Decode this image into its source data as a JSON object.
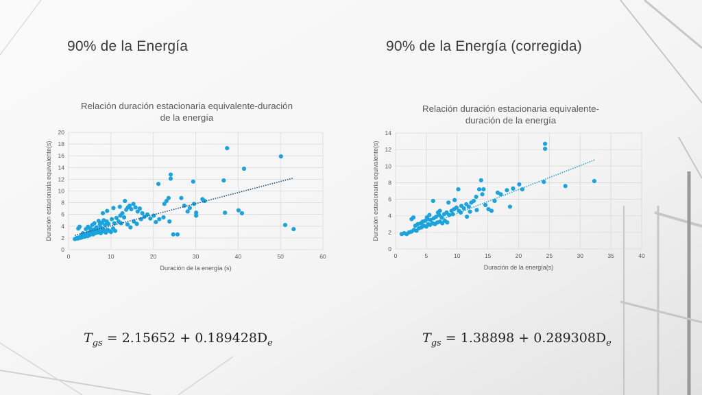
{
  "slide": {
    "title_left": "90% de la Energía",
    "title_right": "90% de la Energía (corregida)",
    "formula_left": {
      "lhs": "T",
      "lhs_sub": "gs",
      "rhs": "= 2.15652 + 0.189428D",
      "rhs_sub": "e"
    },
    "formula_right": {
      "lhs": "T",
      "lhs_sub": "gs",
      "rhs": "= 1.38898 + 0.289308D",
      "rhs_sub": "e"
    }
  },
  "chart_data": [
    {
      "type": "scatter",
      "title": "Relación duración estacionaria equivalente-duración de la energía",
      "title_lines": [
        "Relación duración estacionaria equivalente-duración",
        "de la energía"
      ],
      "xlabel": "Duración de la energía (s)",
      "ylabel": "Duración estacionaria equivalente(s)",
      "xlim": [
        0,
        60
      ],
      "ylim": [
        0,
        20
      ],
      "xticks": [
        0,
        10,
        20,
        30,
        40,
        50,
        60
      ],
      "yticks": [
        0,
        2,
        4,
        6,
        8,
        10,
        12,
        14,
        16,
        18,
        20
      ],
      "grid": true,
      "point_color": "#1aa3dc",
      "trendline": {
        "intercept": 2.15652,
        "slope": 0.189428,
        "x_range": [
          1.5,
          53
        ],
        "style": "dotted",
        "color": "#1f4e79"
      },
      "points": [
        [
          1.5,
          1.8
        ],
        [
          1.8,
          1.9
        ],
        [
          2,
          2
        ],
        [
          2.2,
          1.9
        ],
        [
          2.5,
          2.1
        ],
        [
          2.8,
          2
        ],
        [
          3,
          2.2
        ],
        [
          3.2,
          2.1
        ],
        [
          3.5,
          2.3
        ],
        [
          3.8,
          2.2
        ],
        [
          4,
          2.4
        ],
        [
          4.2,
          2.5
        ],
        [
          4.5,
          2.3
        ],
        [
          4.8,
          2.6
        ],
        [
          5,
          2.5
        ],
        [
          5.3,
          2.7
        ],
        [
          5.5,
          2.8
        ],
        [
          5.8,
          2.6
        ],
        [
          6,
          3
        ],
        [
          6.3,
          2.8
        ],
        [
          6.5,
          3.1
        ],
        [
          6.8,
          2.9
        ],
        [
          7,
          3.2
        ],
        [
          7.3,
          3
        ],
        [
          7.6,
          2.8
        ],
        [
          8,
          3.3
        ],
        [
          8.4,
          3.1
        ],
        [
          8.8,
          2.9
        ],
        [
          9.2,
          3.4
        ],
        [
          9.6,
          3.2
        ],
        [
          10,
          3
        ],
        [
          10.5,
          3.6
        ],
        [
          11,
          3.2
        ],
        [
          2.3,
          3.6
        ],
        [
          2.6,
          3.9
        ],
        [
          3.4,
          2.8
        ],
        [
          4.1,
          3.5
        ],
        [
          4.6,
          3.9
        ],
        [
          5.1,
          3.6
        ],
        [
          5.6,
          4.2
        ],
        [
          6.1,
          4.5
        ],
        [
          6.6,
          3.8
        ],
        [
          7.1,
          4.9
        ],
        [
          7.4,
          4.3
        ],
        [
          7.9,
          4.6
        ],
        [
          8.3,
          5
        ],
        [
          8.6,
          4.2
        ],
        [
          9,
          4.8
        ],
        [
          9.4,
          4.4
        ],
        [
          10.2,
          5.2
        ],
        [
          10.8,
          4.5
        ],
        [
          11.3,
          5.4
        ],
        [
          11.8,
          4.8
        ],
        [
          12.2,
          5.8
        ],
        [
          12.7,
          6.2
        ],
        [
          13.1,
          5.5
        ],
        [
          13.6,
          6.8
        ],
        [
          14,
          7.2
        ],
        [
          14.4,
          7.5
        ],
        [
          14.8,
          6.9
        ],
        [
          15.3,
          7.8
        ],
        [
          15.8,
          7.2
        ],
        [
          16.3,
          6.5
        ],
        [
          16.8,
          7
        ],
        [
          17.4,
          6.2
        ],
        [
          13.3,
          8.3
        ],
        [
          12.1,
          7.3
        ],
        [
          10.6,
          7.1
        ],
        [
          9.1,
          6.6
        ],
        [
          8.1,
          6.2
        ],
        [
          12.4,
          4.5
        ],
        [
          13.9,
          4.3
        ],
        [
          14.6,
          3.8
        ],
        [
          15.4,
          4.8
        ],
        [
          16.1,
          4.4
        ],
        [
          17.1,
          5.2
        ],
        [
          17.9,
          5.6
        ],
        [
          18.6,
          6
        ],
        [
          19.3,
          5.3
        ],
        [
          20.1,
          5.8
        ],
        [
          20.6,
          4.7
        ],
        [
          21.4,
          5.2
        ],
        [
          21.2,
          11.2
        ],
        [
          22.6,
          7.8
        ],
        [
          23.1,
          8.3
        ],
        [
          23.6,
          8.8
        ],
        [
          24.1,
          12.1
        ],
        [
          24.1,
          12.8
        ],
        [
          22.4,
          5.5
        ],
        [
          23.8,
          4.8
        ],
        [
          24.7,
          2.6
        ],
        [
          25.7,
          2.6
        ],
        [
          26.6,
          8.8
        ],
        [
          27.3,
          7.5
        ],
        [
          28.1,
          6.5
        ],
        [
          28.6,
          7.1
        ],
        [
          29.4,
          11.6
        ],
        [
          29.6,
          7.8
        ],
        [
          30.1,
          5.8
        ],
        [
          30.1,
          6.3
        ],
        [
          31.6,
          8.6
        ],
        [
          32.1,
          8.3
        ],
        [
          36.6,
          11.8
        ],
        [
          36.9,
          6.3
        ],
        [
          37.4,
          17.3
        ],
        [
          40.1,
          6.7
        ],
        [
          40.9,
          6.2
        ],
        [
          41.4,
          13.8
        ],
        [
          50.1,
          15.9
        ],
        [
          51.1,
          4.2
        ],
        [
          53.1,
          3.5
        ],
        [
          3.1,
          2.5
        ],
        [
          3.7,
          2.6
        ],
        [
          4.4,
          2.8
        ],
        [
          5.2,
          3.2
        ],
        [
          5.9,
          3.4
        ],
        [
          6.4,
          3.6
        ],
        [
          6.9,
          3.3
        ],
        [
          7.6,
          3.8
        ],
        [
          8.2,
          3.5
        ]
      ]
    },
    {
      "type": "scatter",
      "title": "Relación duración estacionaria equivalente-duración de la energía",
      "title_lines": [
        "Relación duración estacionaria equivalente-",
        "duración de la energía"
      ],
      "xlabel": "Duración de la energía(s)",
      "ylabel": "Duración estacionaria equivalente(s)",
      "xlim": [
        0,
        40
      ],
      "ylim": [
        0,
        14
      ],
      "xticks": [
        0,
        5,
        10,
        15,
        20,
        25,
        30,
        35,
        40
      ],
      "yticks": [
        0,
        2,
        4,
        6,
        8,
        10,
        12,
        14
      ],
      "grid": true,
      "point_color": "#1aa3dc",
      "trendline": {
        "intercept": 1.38898,
        "slope": 0.289308,
        "x_range": [
          1,
          32.5
        ],
        "style": "dotted",
        "color": "#1aa3dc"
      },
      "points": [
        [
          1,
          1.8
        ],
        [
          1.4,
          1.9
        ],
        [
          1.8,
          1.8
        ],
        [
          2.2,
          2
        ],
        [
          2.6,
          2.1
        ],
        [
          3,
          2.3
        ],
        [
          3.4,
          2.2
        ],
        [
          3.8,
          2.5
        ],
        [
          4.2,
          2.6
        ],
        [
          4.6,
          2.8
        ],
        [
          5,
          2.7
        ],
        [
          5.3,
          3
        ],
        [
          5.6,
          2.9
        ],
        [
          6,
          3.1
        ],
        [
          6.4,
          3
        ],
        [
          6.8,
          3.2
        ],
        [
          7.2,
          3.3
        ],
        [
          7.6,
          3.1
        ],
        [
          8,
          3.4
        ],
        [
          8.4,
          3.2
        ],
        [
          4.1,
          3.1
        ],
        [
          4.4,
          3.3
        ],
        [
          4.8,
          3.4
        ],
        [
          5.2,
          3.6
        ],
        [
          5.7,
          3.5
        ],
        [
          6.2,
          3.7
        ],
        [
          6.6,
          3.9
        ],
        [
          7.1,
          4.1
        ],
        [
          7.5,
          3.8
        ],
        [
          7.9,
          4.2
        ],
        [
          8.3,
          4.4
        ],
        [
          8.7,
          4.1
        ],
        [
          9.1,
          4.6
        ],
        [
          9.5,
          4.8
        ],
        [
          9.9,
          5
        ],
        [
          10.3,
          4.6
        ],
        [
          10.7,
          5.2
        ],
        [
          11.1,
          4.9
        ],
        [
          11.5,
          5.4
        ],
        [
          11.9,
          5.1
        ],
        [
          12.3,
          5.6
        ],
        [
          12.7,
          5.8
        ],
        [
          13.1,
          6.3
        ],
        [
          13.6,
          7.2
        ],
        [
          13.9,
          8.3
        ],
        [
          14.3,
          7.2
        ],
        [
          14.6,
          5.3
        ],
        [
          15.1,
          4.8
        ],
        [
          15.6,
          4.6
        ],
        [
          16.1,
          5.8
        ],
        [
          16.6,
          6.8
        ],
        [
          17.1,
          6.6
        ],
        [
          18.1,
          7.1
        ],
        [
          18.6,
          5.1
        ],
        [
          19.1,
          7.3
        ],
        [
          20.1,
          7.8
        ],
        [
          20.6,
          7.2
        ],
        [
          24.1,
          8.1
        ],
        [
          24.3,
          12.1
        ],
        [
          24.3,
          12.7
        ],
        [
          27.6,
          7.6
        ],
        [
          32.3,
          8.2
        ],
        [
          2.6,
          3.6
        ],
        [
          2.9,
          3.8
        ],
        [
          6.1,
          5.8
        ],
        [
          7.2,
          4.6
        ],
        [
          8.6,
          5.6
        ],
        [
          9.6,
          5.9
        ],
        [
          10.2,
          7.2
        ],
        [
          11.6,
          3.9
        ],
        [
          3.2,
          2.8
        ],
        [
          3.6,
          3
        ],
        [
          5.1,
          3.8
        ],
        [
          5.5,
          4.1
        ],
        [
          6.9,
          4.4
        ],
        [
          9.3,
          4.2
        ],
        [
          10.6,
          4.4
        ],
        [
          12.1,
          4.5
        ],
        [
          13.2,
          4.7
        ],
        [
          14.1,
          6.6
        ]
      ]
    }
  ]
}
